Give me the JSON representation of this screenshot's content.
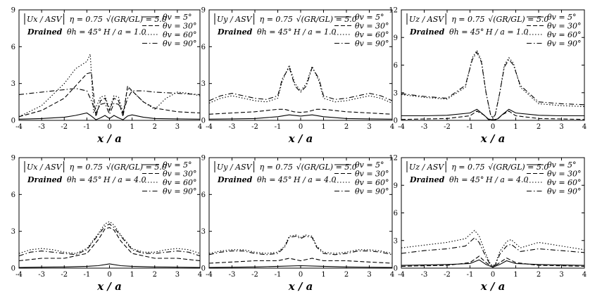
{
  "figure": {
    "x_axis_label": "x / a",
    "x_ticks": [
      "-4",
      "-3",
      "-2",
      "-1",
      "0",
      "1",
      "2",
      "3",
      "4"
    ],
    "line_color": "#000000"
  },
  "chart_data": [
    {
      "type": "line",
      "title": "|Ux / ASV|",
      "annotations": [
        "η = 0.75",
        "√(GR/GL) = 5.0",
        "Drained",
        "θh = 45°",
        "H / a = 1.0"
      ],
      "xlabel": "x / a",
      "ylabel": "",
      "xlim": [
        -4,
        4
      ],
      "ylim": [
        0,
        9
      ],
      "y_ticks": [
        "0",
        "3",
        "6",
        "9"
      ],
      "legend_position": "top-right",
      "grid": false,
      "series": [
        {
          "name": "θv = 5°",
          "style": "solid",
          "x": [
            -4,
            -3,
            -2,
            -1.5,
            -1,
            -0.8,
            -0.6,
            -0.4,
            -0.2,
            0,
            0.2,
            0.4,
            0.6,
            0.8,
            1,
            1.5,
            2,
            3,
            4
          ],
          "y": [
            0.1,
            0.15,
            0.25,
            0.4,
            0.6,
            0.35,
            0.05,
            0.2,
            0.4,
            0.15,
            0.4,
            0.2,
            0.05,
            0.35,
            0.45,
            0.25,
            0.15,
            0.12,
            0.1
          ]
        },
        {
          "name": "θv = 30°",
          "style": "dashed",
          "x": [
            -4,
            -3,
            -2,
            -1.5,
            -1,
            -0.8,
            -0.6,
            -0.4,
            -0.2,
            0,
            0.2,
            0.4,
            0.6,
            0.8,
            1,
            1.5,
            2,
            3,
            4
          ],
          "y": [
            0.3,
            0.8,
            1.8,
            2.8,
            3.8,
            3.9,
            0.3,
            1.6,
            1.8,
            0.8,
            1.8,
            1.6,
            0.3,
            2.8,
            2.4,
            1.5,
            1.0,
            0.7,
            0.6
          ]
        },
        {
          "name": "θv = 60°",
          "style": "dotted",
          "x": [
            -4,
            -3,
            -2,
            -1.5,
            -1,
            -0.85,
            -0.7,
            -0.4,
            -0.2,
            0,
            0.2,
            0.4,
            0.6,
            0.8,
            1,
            1.5,
            2,
            2.5,
            3,
            3.5,
            4
          ],
          "y": [
            0.3,
            1.2,
            3.0,
            4.2,
            4.8,
            5.4,
            0.6,
            1.9,
            2.0,
            0.9,
            2.0,
            1.9,
            0.6,
            2.6,
            2.4,
            1.5,
            0.9,
            1.8,
            2.3,
            2.2,
            2.0
          ]
        },
        {
          "name": "θv = 90°",
          "style": "dashdot",
          "x": [
            -4,
            -3,
            -2,
            -1.5,
            -1,
            -0.8,
            -0.6,
            -0.4,
            -0.2,
            0,
            0.2,
            0.4,
            0.6,
            0.8,
            1,
            1.5,
            2,
            3,
            4
          ],
          "y": [
            2.1,
            2.3,
            2.5,
            2.6,
            2.4,
            1.6,
            0.6,
            1.3,
            1.4,
            0.5,
            1.4,
            1.3,
            0.6,
            1.8,
            2.4,
            2.4,
            2.3,
            2.2,
            2.1
          ]
        }
      ]
    },
    {
      "type": "line",
      "title": "|Uy / ASV|",
      "annotations": [
        "η = 0.75",
        "√(GR/GL) = 5.0",
        "Drained",
        "θh = 45°",
        "H / a = 1.0"
      ],
      "xlabel": "x / a",
      "ylabel": "",
      "xlim": [
        -4,
        4
      ],
      "ylim": [
        0,
        9
      ],
      "y_ticks": [
        "0",
        "3",
        "6",
        "9"
      ],
      "legend_position": "top-right",
      "grid": false,
      "series": [
        {
          "name": "θv = 5°",
          "style": "solid",
          "x": [
            -4,
            -3,
            -2,
            -1,
            -0.5,
            0,
            0.5,
            1,
            2,
            3,
            4
          ],
          "y": [
            0.1,
            0.12,
            0.15,
            0.3,
            0.45,
            0.35,
            0.45,
            0.3,
            0.15,
            0.12,
            0.1
          ]
        },
        {
          "name": "θv = 30°",
          "style": "dashed",
          "x": [
            -4,
            -3,
            -2,
            -1,
            -0.7,
            -0.5,
            -0.3,
            0,
            0.3,
            0.5,
            0.7,
            1,
            2,
            3,
            4
          ],
          "y": [
            0.5,
            0.6,
            0.7,
            0.9,
            0.9,
            0.8,
            0.7,
            0.65,
            0.7,
            0.8,
            0.9,
            0.9,
            0.7,
            0.6,
            0.5
          ]
        },
        {
          "name": "θv = 60°",
          "style": "dotted",
          "x": [
            -4,
            -3.5,
            -3,
            -2.5,
            -2,
            -1.5,
            -1,
            -0.8,
            -0.5,
            -0.25,
            0,
            0.25,
            0.5,
            0.8,
            1,
            1.5,
            2,
            2.5,
            3,
            3.5,
            4
          ],
          "y": [
            1.4,
            1.8,
            2.0,
            1.8,
            1.6,
            1.5,
            1.8,
            3.2,
            4.5,
            3.0,
            2.4,
            3.0,
            4.4,
            3.2,
            1.8,
            1.5,
            1.6,
            1.8,
            2.0,
            1.8,
            1.4
          ]
        },
        {
          "name": "θv = 90°",
          "style": "dashdot",
          "x": [
            -4,
            -3.5,
            -3,
            -2.5,
            -2,
            -1.5,
            -1,
            -0.8,
            -0.5,
            -0.25,
            0,
            0.25,
            0.5,
            0.8,
            1,
            1.5,
            2,
            2.5,
            3,
            3.5,
            4
          ],
          "y": [
            1.6,
            2.0,
            2.2,
            2.0,
            1.8,
            1.7,
            2.0,
            3.4,
            4.3,
            2.8,
            2.3,
            2.8,
            4.3,
            3.4,
            2.0,
            1.7,
            1.8,
            2.0,
            2.2,
            2.0,
            1.6
          ]
        }
      ]
    },
    {
      "type": "line",
      "title": "|Uz / ASV|",
      "annotations": [
        "η = 0.75",
        "√(GR/GL) = 5.0",
        "Drained",
        "θh = 45°",
        "H / a = 1.0"
      ],
      "xlabel": "x / a",
      "ylabel": "",
      "xlim": [
        -4,
        4
      ],
      "ylim": [
        0,
        12
      ],
      "y_ticks": [
        "0",
        "3",
        "6",
        "9",
        "12"
      ],
      "legend_position": "top-right",
      "grid": false,
      "series": [
        {
          "name": "θv = 5°",
          "style": "solid",
          "x": [
            -4,
            -3,
            -2,
            -1,
            -0.7,
            -0.4,
            -0.2,
            0,
            0.2,
            0.4,
            0.7,
            1,
            2,
            3,
            4
          ],
          "y": [
            0.5,
            0.5,
            0.55,
            0.8,
            1.2,
            0.6,
            0.15,
            0.05,
            0.15,
            0.6,
            1.2,
            0.8,
            0.55,
            0.5,
            0.5
          ]
        },
        {
          "name": "θv = 30°",
          "style": "dashed",
          "x": [
            -4,
            -3,
            -2,
            -1,
            -0.7,
            -0.4,
            -0.2,
            0,
            0.2,
            0.4,
            0.7,
            1,
            2,
            3,
            4
          ],
          "y": [
            0.1,
            0.15,
            0.2,
            0.5,
            1.0,
            0.6,
            0.1,
            0.05,
            0.1,
            0.6,
            1.0,
            0.5,
            0.2,
            0.15,
            0.1
          ]
        },
        {
          "name": "θv = 60°",
          "style": "dotted",
          "x": [
            -4,
            -3,
            -2,
            -1.2,
            -0.9,
            -0.7,
            -0.5,
            -0.3,
            -0.1,
            0,
            0.1,
            0.3,
            0.5,
            0.7,
            0.9,
            1.2,
            2,
            3,
            4
          ],
          "y": [
            2.8,
            2.5,
            2.3,
            3.6,
            6.8,
            7.6,
            6.5,
            3.0,
            0.6,
            0.3,
            0.6,
            3.0,
            6.0,
            6.8,
            6.2,
            3.6,
            1.8,
            1.6,
            1.5
          ]
        },
        {
          "name": "θv = 90°",
          "style": "dashdot",
          "x": [
            -4,
            -3,
            -2,
            -1.2,
            -0.9,
            -0.7,
            -0.5,
            -0.3,
            -0.1,
            0,
            0.1,
            0.3,
            0.5,
            0.7,
            0.9,
            1.2,
            2,
            3,
            4
          ],
          "y": [
            2.9,
            2.6,
            2.4,
            3.8,
            6.6,
            7.4,
            6.3,
            3.0,
            0.6,
            0.3,
            0.6,
            3.0,
            5.8,
            6.6,
            6.0,
            3.8,
            2.0,
            1.8,
            1.7
          ]
        }
      ]
    },
    {
      "type": "line",
      "title": "|Ux / ASV|",
      "annotations": [
        "η = 0.75",
        "√(GR/GL) = 5.0",
        "Drained",
        "θh = 45°",
        "H / a = 4.0"
      ],
      "xlabel": "x / a",
      "ylabel": "",
      "xlim": [
        -4,
        4
      ],
      "ylim": [
        0,
        9
      ],
      "y_ticks": [
        "0",
        "3",
        "6",
        "9"
      ],
      "legend_position": "top-right",
      "grid": false,
      "series": [
        {
          "name": "θv = 5°",
          "style": "solid",
          "x": [
            -4,
            -3,
            -2,
            -1,
            -0.5,
            0,
            0.5,
            1,
            2,
            3,
            4
          ],
          "y": [
            0.05,
            0.08,
            0.1,
            0.15,
            0.2,
            0.35,
            0.2,
            0.15,
            0.1,
            0.08,
            0.05
          ]
        },
        {
          "name": "θv = 30°",
          "style": "dashed",
          "x": [
            -4,
            -3,
            -2,
            -1,
            -0.5,
            -0.2,
            0,
            0.2,
            0.5,
            1,
            2,
            3,
            4
          ],
          "y": [
            0.6,
            0.8,
            0.8,
            1.2,
            2.3,
            3.2,
            3.3,
            3.1,
            2.2,
            1.2,
            0.8,
            0.8,
            0.6
          ]
        },
        {
          "name": "θv = 60°",
          "style": "dotted",
          "x": [
            -4,
            -3.5,
            -3,
            -2.5,
            -2,
            -1.5,
            -1,
            -0.5,
            -0.2,
            0,
            0.2,
            0.5,
            1,
            1.5,
            2,
            2.5,
            3,
            3.5,
            4
          ],
          "y": [
            1.2,
            1.5,
            1.6,
            1.5,
            1.3,
            1.2,
            1.6,
            2.8,
            3.6,
            3.8,
            3.5,
            2.7,
            1.6,
            1.3,
            1.3,
            1.5,
            1.6,
            1.5,
            1.2
          ]
        },
        {
          "name": "θv = 90°",
          "style": "dashdot",
          "x": [
            -4,
            -3.5,
            -3,
            -2.5,
            -2,
            -1.5,
            -1,
            -0.5,
            -0.2,
            0,
            0.2,
            0.5,
            1,
            1.5,
            2,
            2.5,
            3,
            3.5,
            4
          ],
          "y": [
            1.0,
            1.3,
            1.4,
            1.3,
            1.2,
            1.1,
            1.5,
            2.7,
            3.4,
            3.6,
            3.3,
            2.6,
            1.5,
            1.2,
            1.2,
            1.3,
            1.4,
            1.3,
            1.0
          ]
        }
      ]
    },
    {
      "type": "line",
      "title": "|Uy / ASV|",
      "annotations": [
        "η = 0.75",
        "√(GR/GL) = 5.0",
        "Drained",
        "θh = 45°",
        "H / a = 4.0"
      ],
      "xlabel": "x / a",
      "ylabel": "",
      "xlim": [
        -4,
        4
      ],
      "ylim": [
        0,
        9
      ],
      "y_ticks": [
        "0",
        "3",
        "6",
        "9"
      ],
      "legend_position": "top-right",
      "grid": false,
      "series": [
        {
          "name": "θv = 5°",
          "style": "solid",
          "x": [
            -4,
            -2,
            -1,
            0,
            1,
            2,
            4
          ],
          "y": [
            0.05,
            0.1,
            0.15,
            0.2,
            0.15,
            0.1,
            0.05
          ]
        },
        {
          "name": "θv = 30°",
          "style": "dashed",
          "x": [
            -4,
            -3,
            -2,
            -1,
            -0.5,
            0,
            0.5,
            1,
            2,
            3,
            4
          ],
          "y": [
            0.4,
            0.5,
            0.6,
            0.6,
            0.8,
            0.6,
            0.8,
            0.6,
            0.6,
            0.5,
            0.4
          ]
        },
        {
          "name": "θv = 60°",
          "style": "dotted",
          "x": [
            -4,
            -3.5,
            -3,
            -2.5,
            -2,
            -1.5,
            -1,
            -0.7,
            -0.5,
            -0.2,
            0,
            0.2,
            0.5,
            0.7,
            1,
            1.5,
            2,
            2.5,
            3,
            3.5,
            4
          ],
          "y": [
            1.2,
            1.4,
            1.5,
            1.5,
            1.3,
            1.2,
            1.3,
            1.8,
            2.6,
            2.7,
            2.5,
            2.7,
            2.6,
            1.8,
            1.3,
            1.2,
            1.3,
            1.5,
            1.5,
            1.4,
            1.2
          ]
        },
        {
          "name": "θv = 90°",
          "style": "dashdot",
          "x": [
            -4,
            -3.5,
            -3,
            -2.5,
            -2,
            -1.5,
            -1,
            -0.7,
            -0.5,
            -0.2,
            0,
            0.2,
            0.5,
            0.7,
            1,
            1.5,
            2,
            2.5,
            3,
            3.5,
            4
          ],
          "y": [
            1.1,
            1.3,
            1.4,
            1.4,
            1.2,
            1.1,
            1.2,
            1.7,
            2.5,
            2.6,
            2.4,
            2.6,
            2.5,
            1.7,
            1.2,
            1.1,
            1.2,
            1.4,
            1.4,
            1.3,
            1.1
          ]
        }
      ]
    },
    {
      "type": "line",
      "title": "|Uz / ASV|",
      "annotations": [
        "η = 0.75",
        "√(GR/GL) = 5.0",
        "Drained",
        "θh = 45°",
        "H / a = 4.0"
      ],
      "xlabel": "x / a",
      "ylabel": "",
      "xlim": [
        -4,
        4
      ],
      "ylim": [
        0,
        12
      ],
      "y_ticks": [
        "0",
        "3",
        "6",
        "9",
        "12"
      ],
      "legend_position": "top-right",
      "grid": false,
      "series": [
        {
          "name": "θv = 5°",
          "style": "solid",
          "x": [
            -4,
            -3,
            -2,
            -1,
            -0.6,
            -0.3,
            0,
            0.3,
            0.6,
            1,
            2,
            3,
            4
          ],
          "y": [
            0.3,
            0.35,
            0.4,
            0.5,
            0.9,
            0.4,
            0.1,
            0.4,
            0.8,
            0.5,
            0.4,
            0.35,
            0.3
          ]
        },
        {
          "name": "θv = 30°",
          "style": "dashed",
          "x": [
            -4,
            -3,
            -2,
            -1,
            -0.6,
            -0.3,
            0,
            0.3,
            0.6,
            1,
            2,
            3,
            4
          ],
          "y": [
            0.2,
            0.25,
            0.3,
            0.6,
            1.3,
            0.6,
            0.1,
            0.6,
            1.1,
            0.6,
            0.3,
            0.25,
            0.2
          ]
        },
        {
          "name": "θv = 60°",
          "style": "dotted",
          "x": [
            -4,
            -3,
            -2,
            -1.2,
            -0.8,
            -0.6,
            -0.3,
            -0.1,
            0,
            0.1,
            0.3,
            0.6,
            0.8,
            1.2,
            2,
            3,
            4
          ],
          "y": [
            2.2,
            2.5,
            2.8,
            3.2,
            4.1,
            3.5,
            1.5,
            0.4,
            0.3,
            0.4,
            1.8,
            2.9,
            3.1,
            2.2,
            2.8,
            2.4,
            2.0
          ]
        },
        {
          "name": "θv = 90°",
          "style": "dashdot",
          "x": [
            -4,
            -3,
            -2,
            -1.2,
            -0.8,
            -0.6,
            -0.3,
            -0.1,
            0,
            0.1,
            0.3,
            0.6,
            0.8,
            1.2,
            2,
            3,
            4
          ],
          "y": [
            1.6,
            1.9,
            2.1,
            2.4,
            3.3,
            2.8,
            1.2,
            0.3,
            0.2,
            0.3,
            1.5,
            2.4,
            2.6,
            1.8,
            2.1,
            1.9,
            1.7
          ]
        }
      ]
    }
  ]
}
